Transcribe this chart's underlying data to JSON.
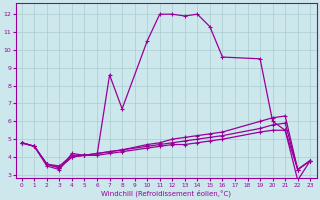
{
  "xlabel": "Windchill (Refroidissement éolien,°C)",
  "background_color": "#cce8ec",
  "line_color": "#990099",
  "grid_color": "#aaccd0",
  "xlim": [
    -0.5,
    23.5
  ],
  "ylim": [
    2.8,
    12.6
  ],
  "xticks": [
    0,
    1,
    2,
    3,
    4,
    5,
    6,
    7,
    8,
    9,
    10,
    11,
    12,
    13,
    14,
    15,
    16,
    17,
    18,
    19,
    20,
    21,
    22,
    23
  ],
  "yticks": [
    3,
    4,
    5,
    6,
    7,
    8,
    9,
    10,
    11,
    12
  ],
  "series": [
    {
      "x": [
        0,
        1,
        2,
        3,
        4,
        5,
        6,
        7,
        8,
        10,
        11,
        12,
        13,
        14,
        15,
        16,
        19,
        20,
        21,
        22,
        23
      ],
      "y": [
        4.8,
        4.6,
        3.5,
        3.3,
        4.2,
        4.1,
        4.1,
        8.6,
        6.7,
        10.5,
        12.0,
        12.0,
        11.9,
        12.0,
        11.3,
        9.6,
        9.5,
        6.0,
        5.5,
        2.7,
        3.8
      ]
    },
    {
      "x": [
        0,
        1,
        2,
        3,
        4,
        5,
        6,
        7,
        8,
        10,
        11,
        12,
        13,
        14,
        15,
        16,
        19,
        20,
        21,
        22,
        23
      ],
      "y": [
        4.8,
        4.6,
        3.6,
        3.4,
        4.0,
        4.1,
        4.2,
        4.3,
        4.4,
        4.7,
        4.8,
        5.0,
        5.1,
        5.2,
        5.3,
        5.4,
        6.0,
        6.2,
        6.3,
        3.3,
        3.8
      ]
    },
    {
      "x": [
        0,
        1,
        2,
        3,
        4,
        5,
        6,
        7,
        8,
        10,
        11,
        12,
        13,
        14,
        15,
        16,
        19,
        20,
        21,
        22,
        23
      ],
      "y": [
        4.8,
        4.6,
        3.6,
        3.4,
        4.0,
        4.1,
        4.2,
        4.3,
        4.4,
        4.6,
        4.7,
        4.8,
        4.9,
        5.0,
        5.1,
        5.2,
        5.6,
        5.8,
        5.9,
        3.3,
        3.8
      ]
    },
    {
      "x": [
        0,
        1,
        2,
        3,
        4,
        5,
        6,
        7,
        8,
        10,
        11,
        12,
        13,
        14,
        15,
        16,
        19,
        20,
        21,
        22,
        23
      ],
      "y": [
        4.8,
        4.6,
        3.6,
        3.5,
        4.1,
        4.1,
        4.1,
        4.2,
        4.3,
        4.5,
        4.6,
        4.7,
        4.7,
        4.8,
        4.9,
        5.0,
        5.4,
        5.5,
        5.5,
        3.3,
        3.8
      ]
    }
  ]
}
